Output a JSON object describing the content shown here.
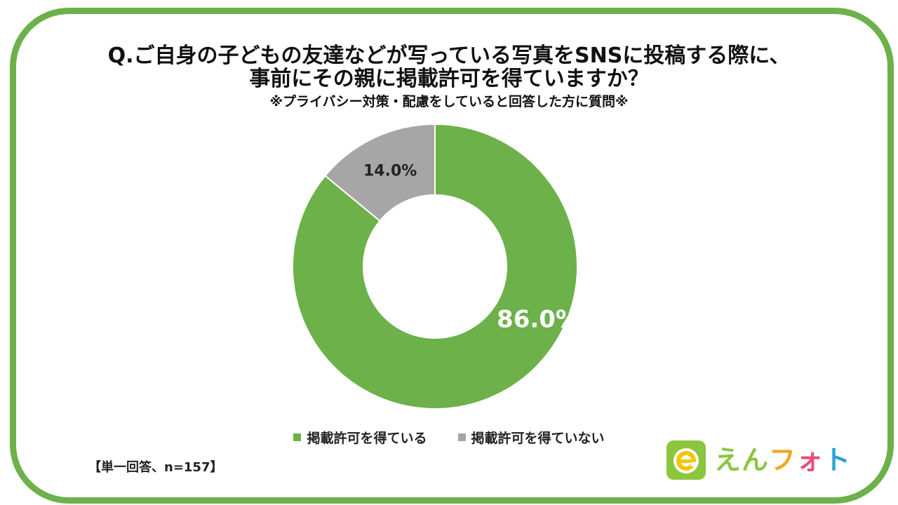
{
  "title_line1": "Q.ご自身の子どもの友達などが写っている写真をSNSに投稿する際に、",
  "title_line2": "事前にその親に掲載許可を得ていますか？",
  "subtitle": "※プライバシー対策・配慮をしていると回答した方に質問※",
  "note": "【単一回答、n=157】",
  "logo": {
    "chars": [
      "え",
      "ん",
      "フ",
      "ォ",
      "ト"
    ],
    "colors": [
      "#8cc63f",
      "#8cc63f",
      "#f5a623",
      "#e94e77",
      "#29a3da"
    ]
  },
  "colors": {
    "frame": "#6cb14a",
    "got_permission": "#6cb14a",
    "no_permission": "#a6a6a6"
  },
  "chart_data": {
    "type": "pie",
    "donut": true,
    "categories": [
      "掲載許可を得ている",
      "掲載許可を得ていない"
    ],
    "values": [
      86.0,
      14.0
    ],
    "labels": [
      "86.0%",
      "14.0%"
    ],
    "colors": [
      "#6cb14a",
      "#a6a6a6"
    ],
    "legend_position": "bottom",
    "title": "Q.ご自身の子どもの友達などが写っている写真をSNSに投稿する際に、事前にその親に掲載許可を得ていますか？"
  }
}
